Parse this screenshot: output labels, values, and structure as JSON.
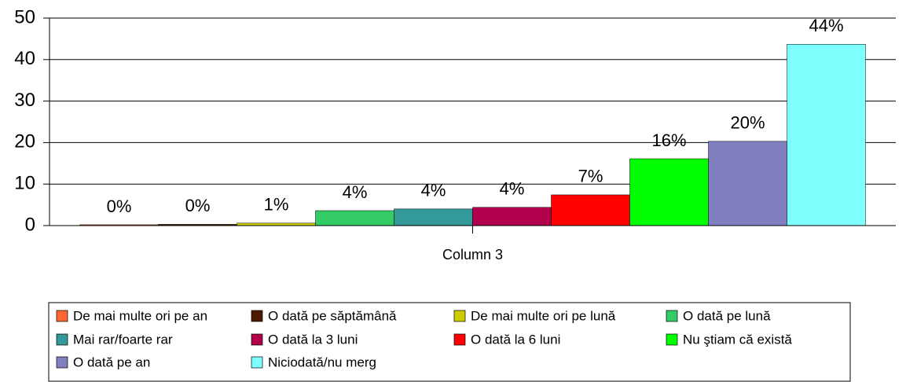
{
  "chart_data": {
    "type": "bar",
    "categories": [
      "Column 3"
    ],
    "series": [
      {
        "name": "De mai multe ori pe an",
        "color": "#ff6633",
        "values": [
          0.2
        ],
        "value_labels": [
          "0%"
        ]
      },
      {
        "name": "O dată pe săptămână",
        "color": "#4d1a00",
        "values": [
          0.3
        ],
        "value_labels": [
          "0%"
        ]
      },
      {
        "name": "De mai multe ori pe lună",
        "color": "#cccc00",
        "values": [
          0.6
        ],
        "value_labels": [
          "1%"
        ]
      },
      {
        "name": "O dată pe lună",
        "color": "#33cc66",
        "values": [
          3.6
        ],
        "value_labels": [
          "4%"
        ]
      },
      {
        "name": "Mai rar/foarte rar",
        "color": "#339999",
        "values": [
          4.0
        ],
        "value_labels": [
          "4%"
        ]
      },
      {
        "name": "O dată la 3 luni",
        "color": "#b3004d",
        "values": [
          4.4
        ],
        "value_labels": [
          "4%"
        ]
      },
      {
        "name": "O dată la 6 luni",
        "color": "#ff0000",
        "values": [
          7.4
        ],
        "value_labels": [
          "7%"
        ]
      },
      {
        "name": "Nu ştiam că există",
        "color": "#00ff00",
        "values": [
          16.1
        ],
        "value_labels": [
          "16%"
        ]
      },
      {
        "name": "O dată pe an",
        "color": "#8080c0",
        "values": [
          20.3
        ],
        "value_labels": [
          "20%"
        ]
      },
      {
        "name": "Niciodată/nu merg",
        "color": "#80ffff",
        "values": [
          43.7
        ],
        "value_labels": [
          "44%"
        ]
      }
    ],
    "ylim": [
      0,
      50
    ],
    "yticks": [
      0,
      10,
      20,
      30,
      40,
      50
    ],
    "grid": true,
    "legend": "bottom"
  }
}
